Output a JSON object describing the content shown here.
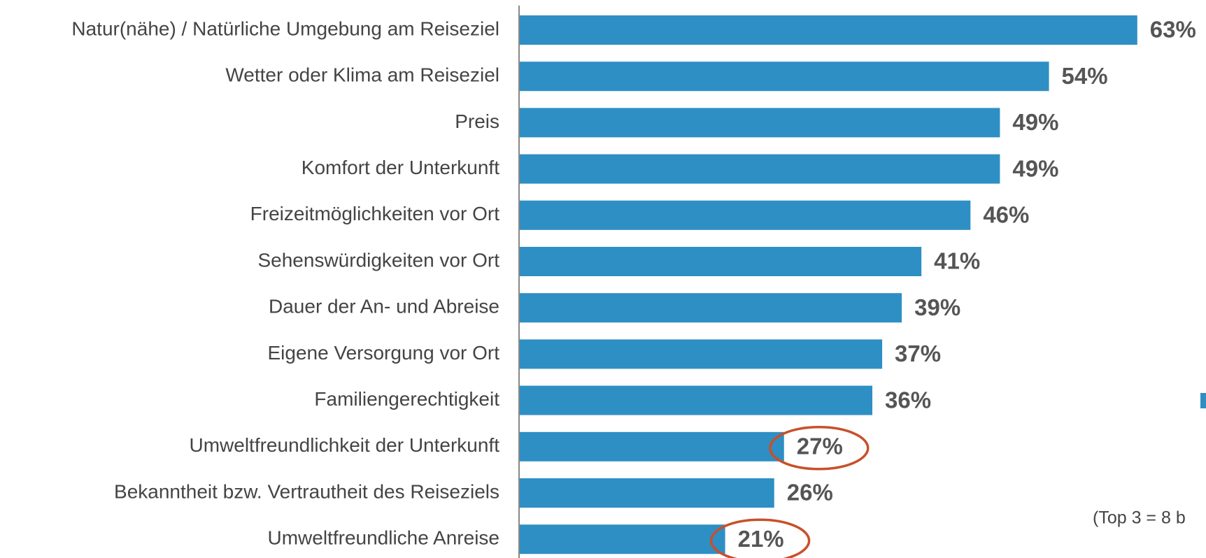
{
  "chart_data": {
    "type": "bar",
    "orientation": "horizontal",
    "categories": [
      "Natur(nähe) / Natürliche Umgebung am Reiseziel",
      "Wetter oder Klima am Reiseziel",
      "Preis",
      "Komfort der Unterkunft",
      "Freizeitmöglichkeiten vor Ort",
      "Sehenswürdigkeiten vor Ort",
      "Dauer der An- und Abreise",
      "Eigene Versorgung vor Ort",
      "Familiengerechtigkeit",
      "Umweltfreundlichkeit der Unterkunft",
      "Bekanntheit bzw. Vertrautheit des Reiseziels",
      "Umweltfreundliche Anreise"
    ],
    "values": [
      63,
      54,
      49,
      49,
      46,
      41,
      39,
      37,
      36,
      27,
      26,
      21
    ],
    "value_labels": [
      "63%",
      "54%",
      "49%",
      "49%",
      "46%",
      "41%",
      "39%",
      "37%",
      "36%",
      "27%",
      "26%",
      "21%"
    ],
    "color": "#2e8fc4",
    "xlim": [
      0,
      70
    ],
    "note": "(Top 3  = 8 b"
  }
}
